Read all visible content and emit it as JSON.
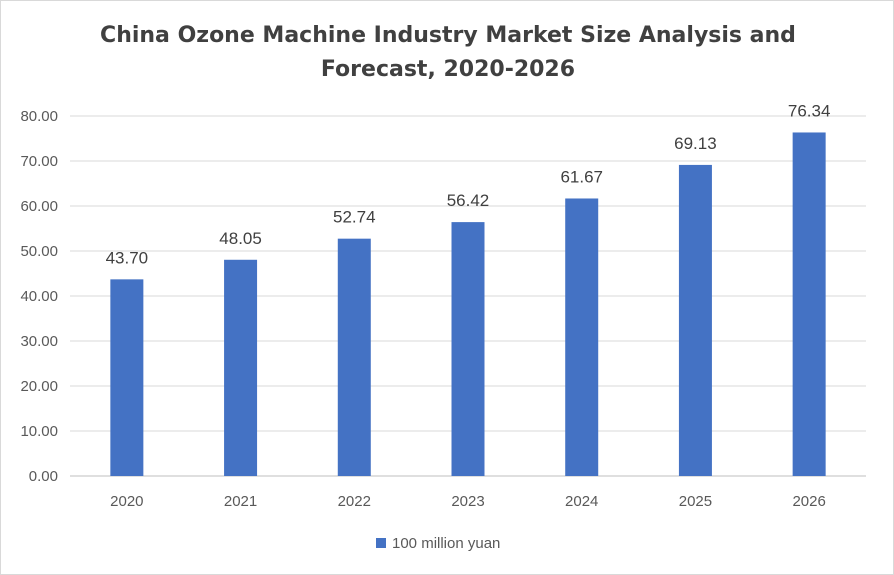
{
  "chart_data": {
    "type": "bar",
    "title": "China Ozone Machine Industry Market Size Analysis and Forecast, 2020-2026",
    "categories": [
      "2020",
      "2021",
      "2022",
      "2023",
      "2024",
      "2025",
      "2026"
    ],
    "series": [
      {
        "name": "100 million yuan",
        "values": [
          43.7,
          48.05,
          52.74,
          56.42,
          61.67,
          69.13,
          76.34
        ],
        "labels": [
          "43.70",
          "48.05",
          "52.74",
          "56.42",
          "61.67",
          "69.13",
          "76.34"
        ],
        "color": "#4472c4"
      }
    ],
    "ylim": [
      0,
      80
    ],
    "yticks": [
      "0.00",
      "10.00",
      "20.00",
      "30.00",
      "40.00",
      "50.00",
      "60.00",
      "70.00",
      "80.00"
    ],
    "grid": true,
    "legend": "bottom"
  }
}
